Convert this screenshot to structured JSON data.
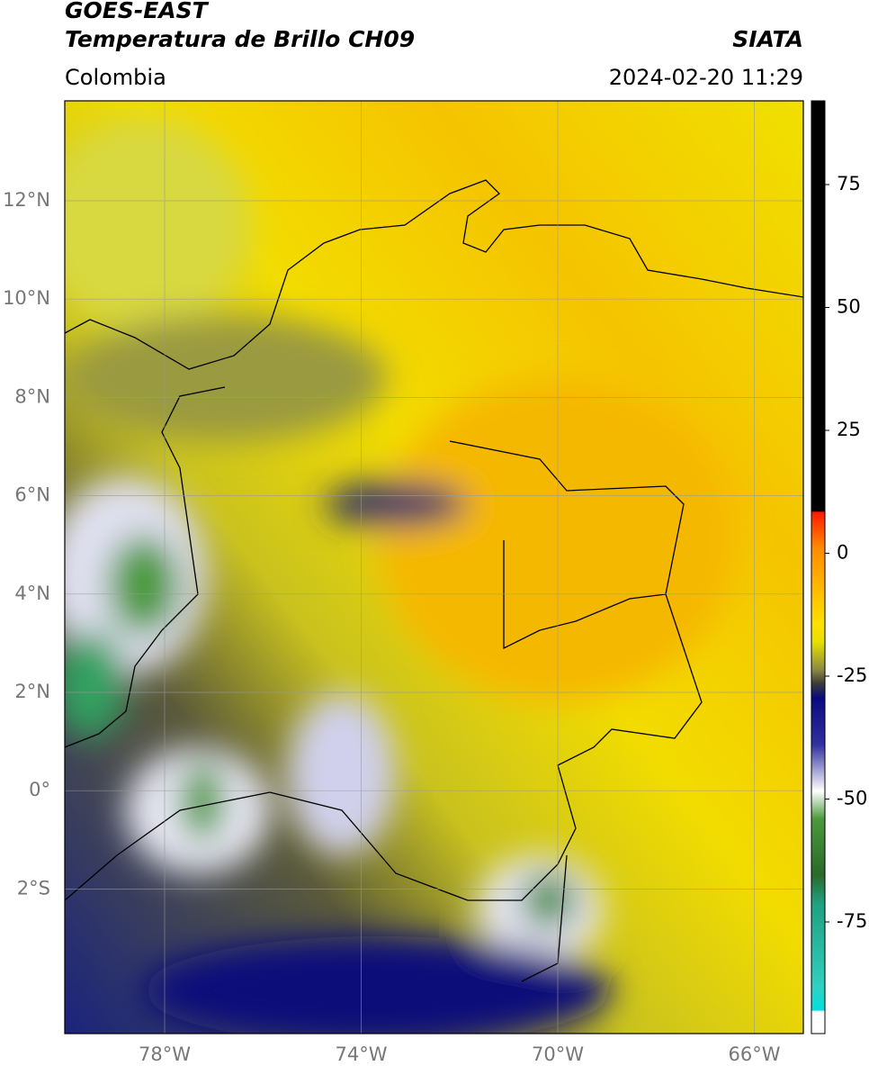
{
  "header": {
    "title": "GOES-EAST",
    "subtitle": "Temperatura de Brillo CH09",
    "region": "Colombia",
    "source": "SIATA",
    "datetime": "2024-02-20 11:29"
  },
  "map": {
    "lat_ticks": [
      "12°N",
      "10°N",
      "8°N",
      "6°N",
      "4°N",
      "2°N",
      "0°",
      "2°S"
    ],
    "lon_ticks": [
      "78°W",
      "74°W",
      "70°W",
      "66°W"
    ]
  },
  "colorbar": {
    "ticks": [
      "75",
      "50",
      "25",
      "0",
      "-25",
      "-50",
      "-75"
    ]
  }
}
